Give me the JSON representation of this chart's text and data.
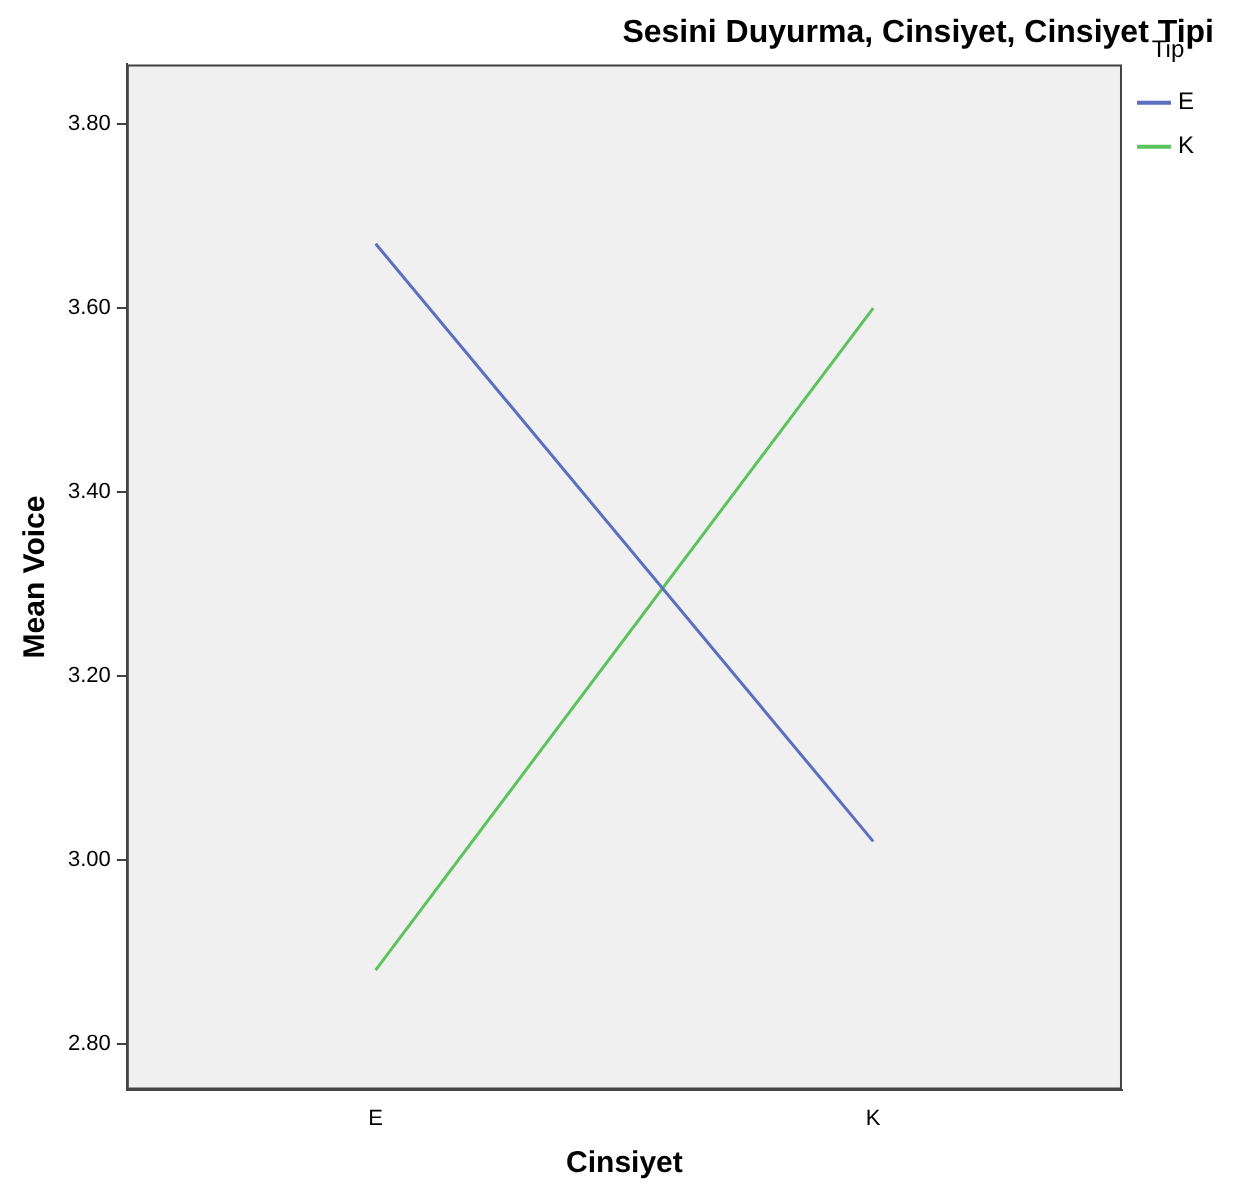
{
  "chart_data": {
    "type": "line",
    "title": "Sesini Duyurma, Cinsiyet, Cinsiyet Tipi",
    "xlabel": "Cinsiyet",
    "ylabel": "Mean Voice",
    "legend_title": "Tip",
    "categories": [
      "E",
      "K"
    ],
    "series": [
      {
        "name": "E",
        "color": "#5b6fbf",
        "values": [
          3.67,
          3.02
        ]
      },
      {
        "name": "K",
        "color": "#5cc25c",
        "values": [
          2.88,
          3.6
        ]
      }
    ],
    "ylim": [
      2.75,
      3.865
    ],
    "yticks": [
      {
        "value": 2.8,
        "label": "2.80"
      },
      {
        "value": 3.0,
        "label": "3.00"
      },
      {
        "value": 3.2,
        "label": "3.20"
      },
      {
        "value": 3.4,
        "label": "3.40"
      },
      {
        "value": 3.6,
        "label": "3.60"
      },
      {
        "value": 3.8,
        "label": "3.80"
      }
    ],
    "grid": false,
    "legend": "top right",
    "marker": "none",
    "line_style": "solid"
  }
}
